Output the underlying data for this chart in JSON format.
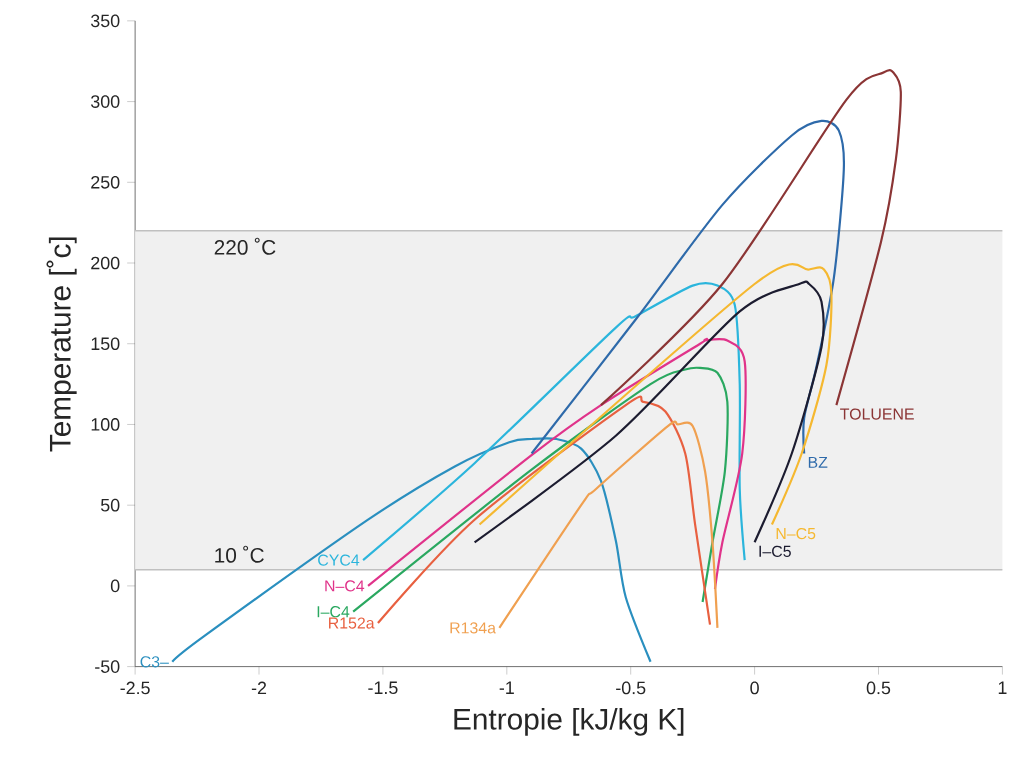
{
  "chart_data": {
    "type": "line",
    "xlabel": "Entropie [kJ/kg K]",
    "ylabel": "Temperature [˚c]",
    "xlim": [
      -2.5,
      1
    ],
    "ylim": [
      -50,
      350
    ],
    "xticks": [
      -2.5,
      -2,
      -1.5,
      -1,
      -0.5,
      0,
      0.5,
      1
    ],
    "yticks": [
      -50,
      0,
      50,
      100,
      150,
      200,
      250,
      300,
      350
    ],
    "bands": [
      {
        "axis": "y",
        "from": 10,
        "to": 220,
        "color": "#f0f0f0"
      }
    ],
    "ref_lines": [
      {
        "axis": "y",
        "value": 220,
        "label": "220 ˚C",
        "color": "#c0c0c0"
      },
      {
        "axis": "y",
        "value": 10,
        "label": "10 ˚C",
        "color": "#c0c0c0"
      }
    ],
    "series": [
      {
        "name": "C3–",
        "color": "#2a8fbf",
        "x": [
          -2.35,
          -2.22,
          -1.56,
          -1.21,
          -0.99,
          -0.9,
          -0.8,
          -0.7,
          -0.62,
          -0.56,
          -0.52,
          -0.42
        ],
        "values": [
          -47,
          -31,
          41,
          74,
          89,
          91,
          91,
          85,
          65,
          28,
          -7,
          -47
        ]
      },
      {
        "name": "CYC4",
        "color": "#2bb5dc",
        "x": [
          -1.58,
          -1.13,
          -0.56,
          -0.48,
          -0.25,
          -0.15,
          -0.08,
          -0.06,
          -0.06,
          -0.04
        ],
        "values": [
          16,
          76,
          160,
          167,
          186,
          186,
          174,
          125,
          60,
          16
        ]
      },
      {
        "name": "N–C4",
        "color": "#e0338a",
        "x": [
          -1.56,
          -0.9,
          -0.62,
          -0.22,
          -0.2,
          -0.11,
          -0.04,
          -0.05,
          -0.13,
          -0.16
        ],
        "values": [
          0,
          81,
          112,
          150,
          152,
          152,
          139,
          82,
          27,
          -2
        ]
      },
      {
        "name": "I–C4",
        "color": "#2aa860",
        "x": [
          -1.62,
          -0.9,
          -0.42,
          -0.28,
          -0.22,
          -0.15,
          -0.11,
          -0.12,
          -0.17,
          -0.21
        ],
        "values": [
          -16,
          72,
          125,
          134,
          135,
          132,
          114,
          71,
          27,
          -10
        ]
      },
      {
        "name": "R152a",
        "color": "#e86040",
        "x": [
          -1.52,
          -1.13,
          -0.52,
          -0.45,
          -0.36,
          -0.28,
          -0.24,
          -0.18
        ],
        "values": [
          -23,
          41,
          112,
          114,
          108,
          82,
          38,
          -24
        ]
      },
      {
        "name": "R134a",
        "color": "#f0a050",
        "x": [
          -1.03,
          -0.7,
          -0.64,
          -0.35,
          -0.31,
          -0.25,
          -0.2,
          -0.17,
          -0.15
        ],
        "values": [
          -26,
          50,
          60,
          99,
          100,
          99,
          71,
          27,
          -26
        ]
      },
      {
        "name": "BZ",
        "color": "#2e6aaa",
        "x": [
          -0.9,
          -0.48,
          -0.13,
          0.15,
          0.27,
          0.34,
          0.36,
          0.32,
          0.25,
          0.2,
          0.2
        ],
        "values": [
          82,
          165,
          236,
          279,
          288,
          282,
          258,
          191,
          136,
          104,
          82
        ]
      },
      {
        "name": "TOLUENE",
        "color": "#8b3535",
        "x": [
          -0.62,
          -0.13,
          0.37,
          0.52,
          0.56,
          0.59,
          0.57,
          0.51,
          0.33
        ],
        "values": [
          112,
          187,
          301,
          318,
          318,
          306,
          264,
          213,
          112
        ]
      },
      {
        "name": "N–C5",
        "color": "#f5b830",
        "x": [
          -1.11,
          0.0,
          0.22,
          0.28,
          0.31,
          0.29,
          0.19,
          0.07
        ],
        "values": [
          38,
          187,
          196,
          196,
          181,
          137,
          82,
          38
        ]
      },
      {
        "name": "I–C5",
        "color": "#1c1c30",
        "x": [
          -1.13,
          -0.56,
          -0.06,
          0.18,
          0.22,
          0.27,
          0.27,
          0.15,
          0.0
        ],
        "values": [
          27,
          93,
          170,
          187,
          187,
          176,
          148,
          82,
          27
        ]
      }
    ]
  }
}
